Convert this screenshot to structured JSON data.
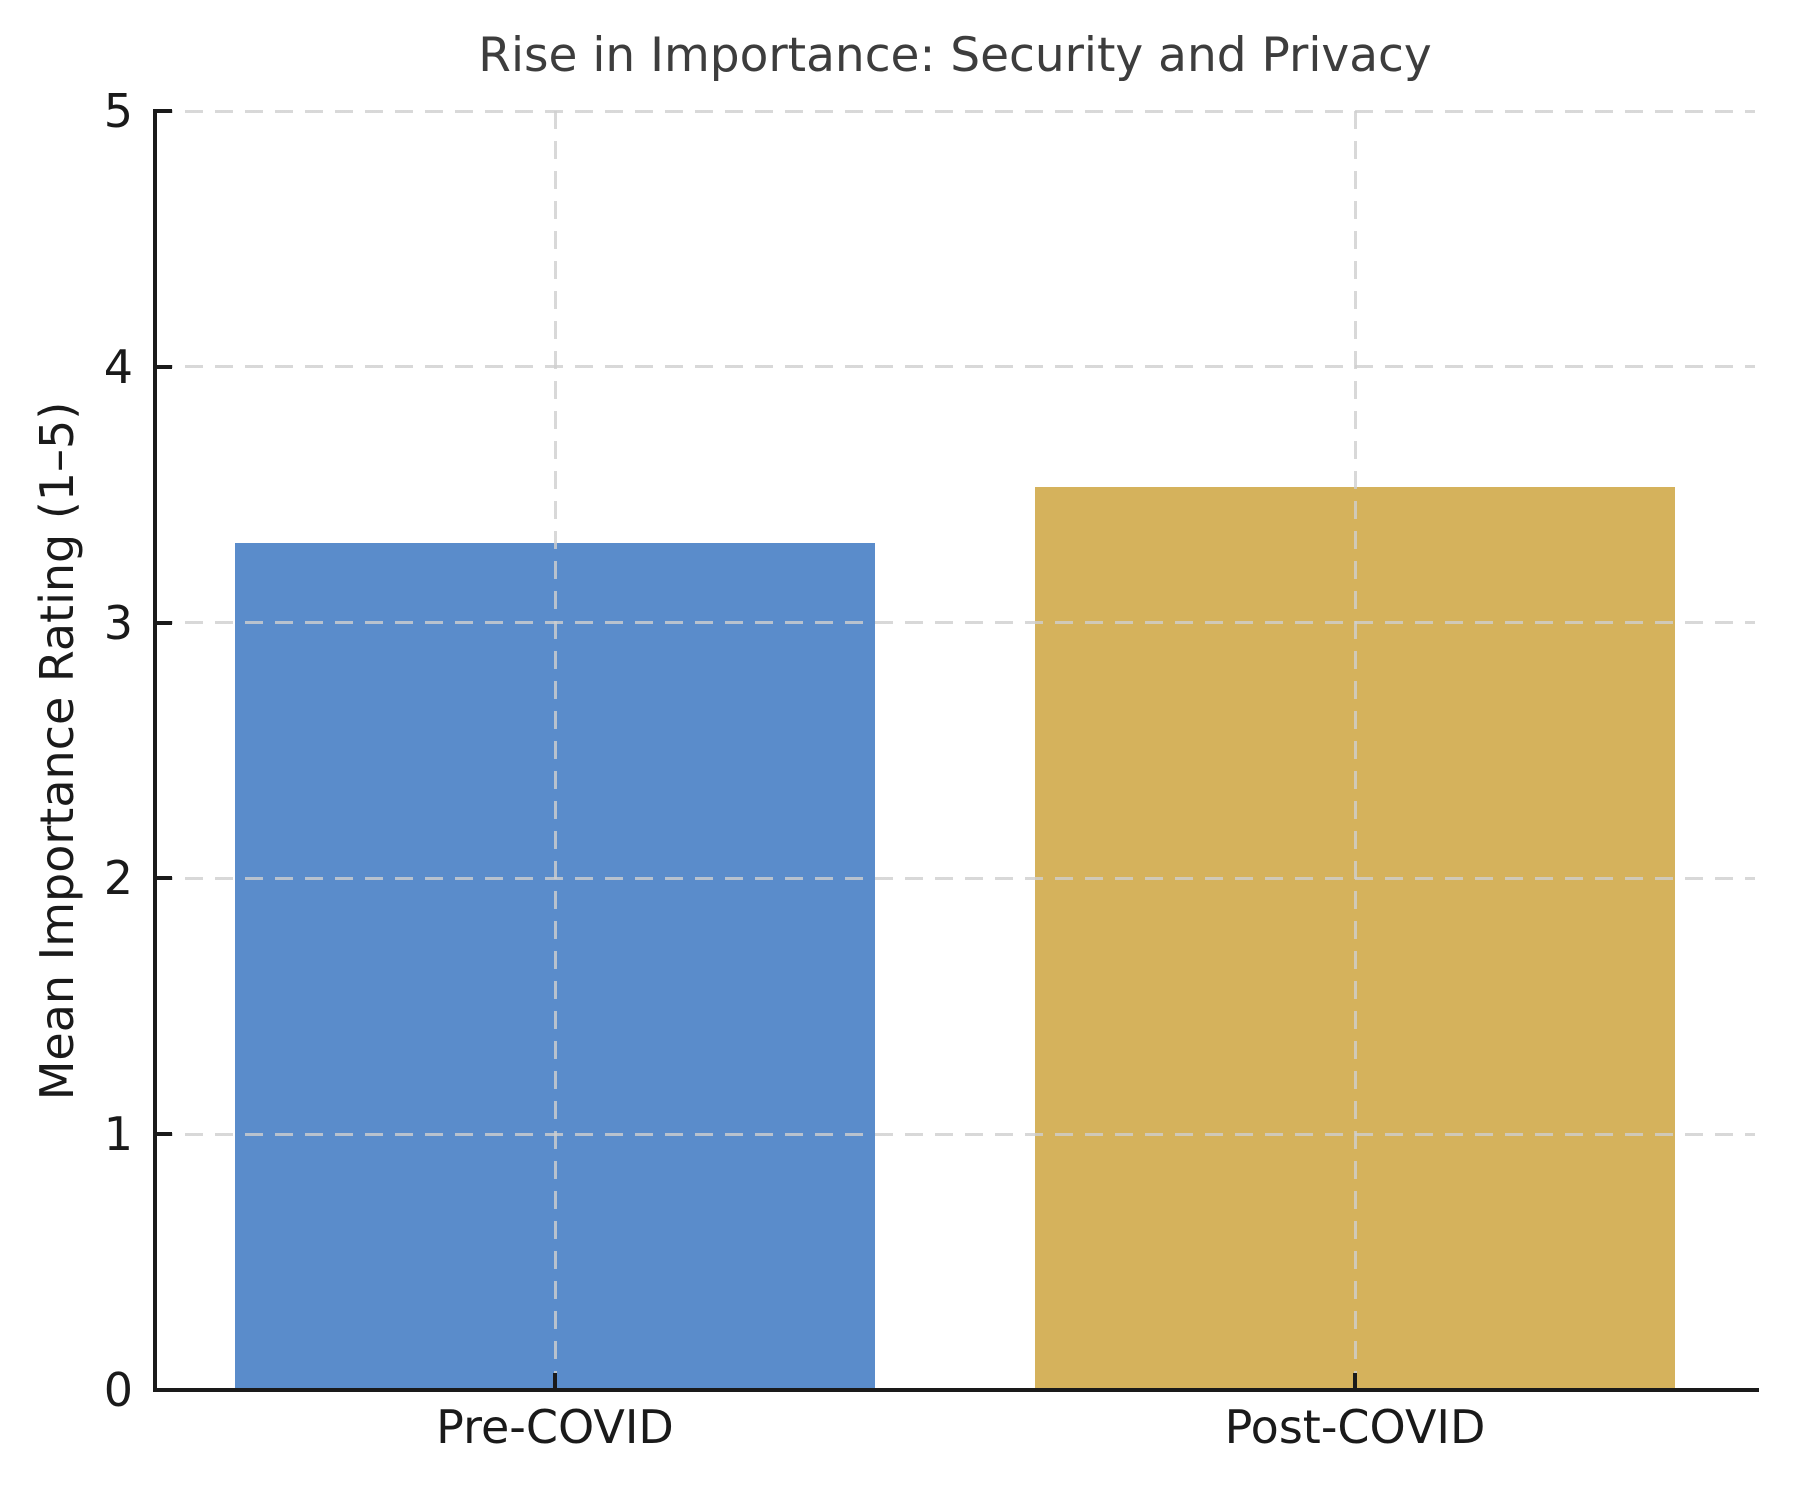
{
  "chart_data": {
    "type": "bar",
    "title": "Rise in Importance: Security and Privacy",
    "xlabel": "",
    "ylabel": "Mean Importance Rating (1–5)",
    "categories": [
      "Pre-COVID",
      "Post-COVID"
    ],
    "values": [
      3.31,
      3.53
    ],
    "bar_colors": [
      "#5a8ccb",
      "#d5b25c"
    ],
    "bar_width_fraction": 0.8,
    "ylim": [
      0,
      5
    ],
    "yticks": [
      0,
      1,
      2,
      3,
      4,
      5
    ],
    "grid": "dashed horizontal and vertical gridlines, drawn above bars",
    "legend_position": "none"
  },
  "styles": {
    "background_color": "#ffffff",
    "title_color": "#3d3d3d",
    "axis_text_color": "#1a1a1a",
    "spine_color": "#1a1a1a",
    "grid_color": "#cfcfcf"
  }
}
